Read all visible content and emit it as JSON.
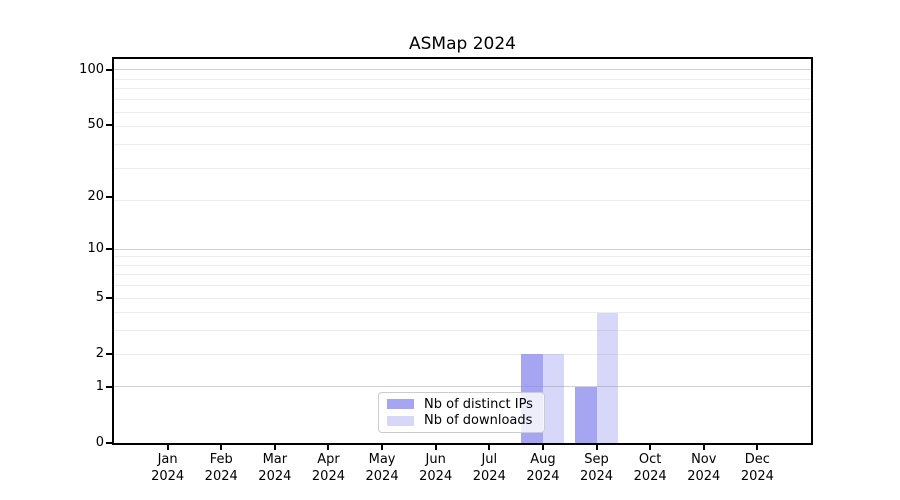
{
  "chart_data": {
    "type": "bar",
    "title": "ASMap 2024",
    "categories": [
      "Jan",
      "Feb",
      "Mar",
      "Apr",
      "May",
      "Jun",
      "Jul",
      "Aug",
      "Sep",
      "Oct",
      "Nov",
      "Dec"
    ],
    "year_label": "2024",
    "series": [
      {
        "name": "Nb of distinct IPs",
        "color": "rgba(130,130,235,0.72)",
        "values": [
          0,
          0,
          0,
          0,
          0,
          0,
          0,
          2,
          1,
          0,
          0,
          0
        ]
      },
      {
        "name": "Nb of downloads",
        "color": "rgba(130,130,235,0.32)",
        "values": [
          0,
          0,
          0,
          0,
          0,
          0,
          0,
          2,
          4,
          0,
          0,
          0
        ]
      }
    ],
    "yticks": [
      0,
      1,
      2,
      5,
      10,
      20,
      50,
      100
    ],
    "xlabel": "",
    "ylabel": "",
    "scale": "log1p",
    "ylim": [
      0,
      114.7
    ],
    "bar_width_frac": 0.4,
    "grid": {
      "on": true,
      "major": [
        1,
        10,
        100
      ],
      "minor": [
        2,
        3,
        4,
        5,
        6,
        7,
        8,
        9,
        19,
        29,
        39,
        49,
        59,
        69,
        79,
        89
      ]
    },
    "legend_position": "inside-bottom-center"
  },
  "colors": {
    "grid_major": "#d0d0d0",
    "grid_minor": "#ececec",
    "spine": "#000000",
    "background": "#ffffff"
  }
}
